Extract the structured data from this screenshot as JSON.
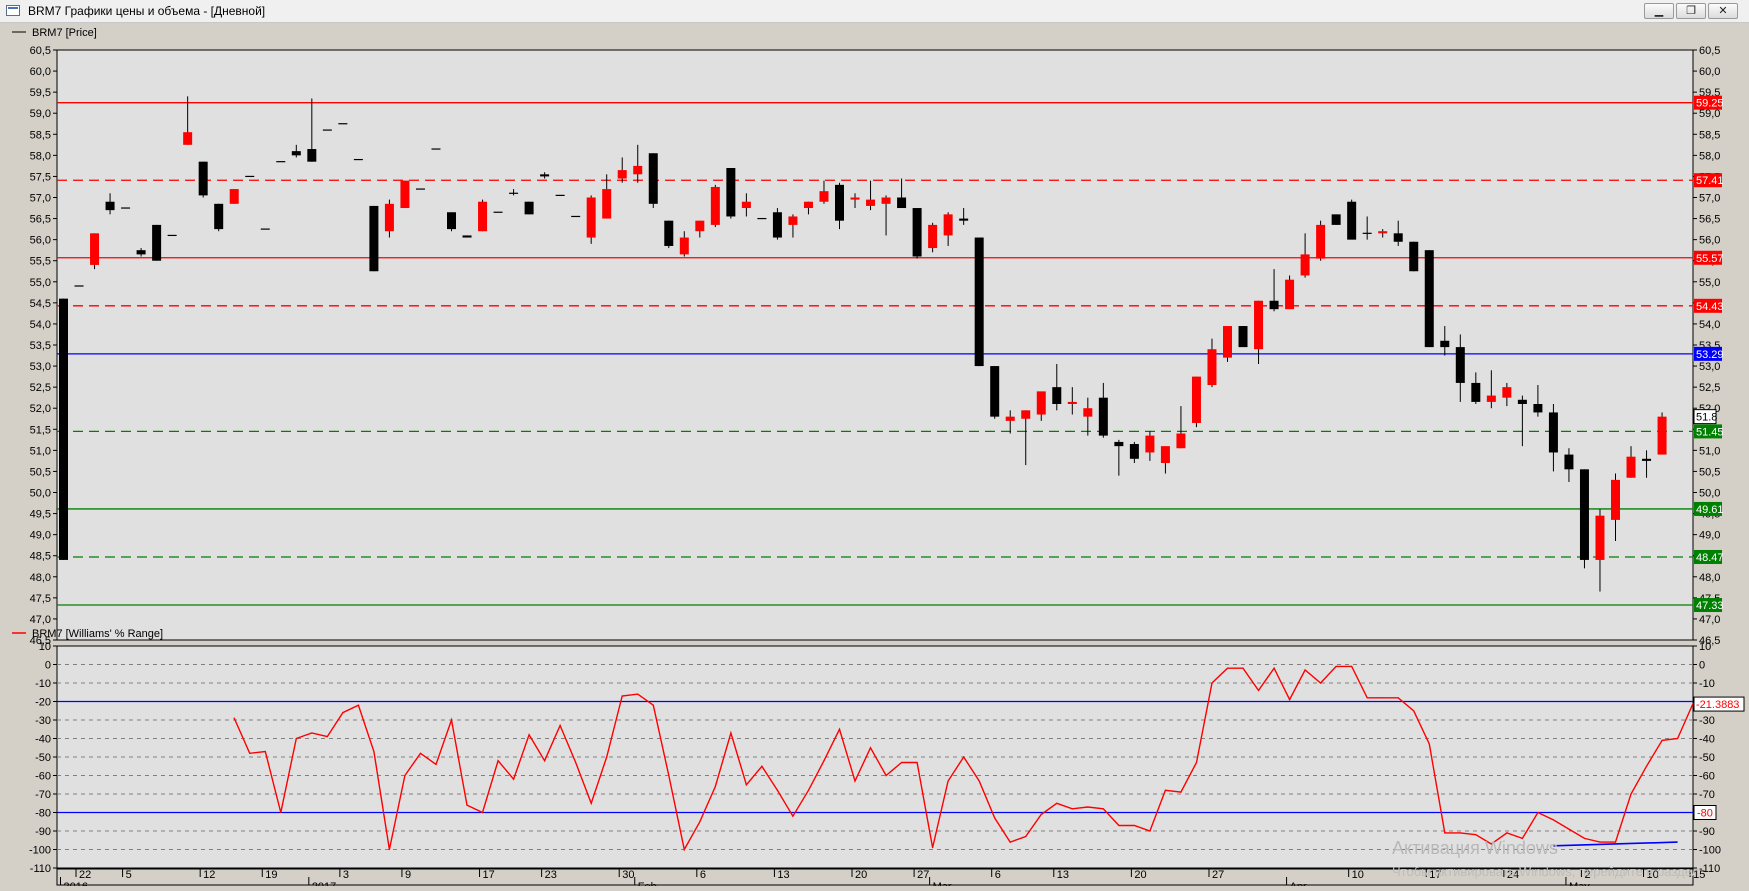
{
  "window": {
    "title": "BRM7 Графики цены и объема - [Дневной]",
    "buttons": {
      "minimize": "▁",
      "restore": "❐",
      "close": "✕"
    }
  },
  "colors": {
    "background": "#d4d0c8",
    "plot_bg": "#e0e0e0",
    "bull": "#ff0000",
    "bear": "#000000",
    "red_line": "#ff0000",
    "blue_line": "#0000ff",
    "green_line": "#008000"
  },
  "watermark": {
    "line1": "Активация Windows",
    "line2": "Чтобы активировать Windows, перейдите в раздел"
  },
  "chart_data": [
    {
      "type": "candlestick",
      "legend": "BRM7 [Price]",
      "ylim": [
        46.5,
        60.5
      ],
      "yticks": [
        46.5,
        47.0,
        47.5,
        48.0,
        48.5,
        49.0,
        49.5,
        50.0,
        50.5,
        51.0,
        51.5,
        52.0,
        52.5,
        53.0,
        53.5,
        54.0,
        54.5,
        55.0,
        55.5,
        56.0,
        56.5,
        57.0,
        57.5,
        58.0,
        58.5,
        59.0,
        59.5,
        60.0,
        60.5
      ],
      "grid": true,
      "candles": [
        [
          54.6,
          54.6,
          48.4,
          48.4
        ],
        [
          54.9,
          54.9,
          54.9,
          54.9
        ],
        [
          55.4,
          56.15,
          55.3,
          56.15
        ],
        [
          56.9,
          57.1,
          56.6,
          56.7
        ],
        [
          56.75,
          56.75,
          56.75,
          56.75
        ],
        [
          55.75,
          55.8,
          55.6,
          55.65
        ],
        [
          56.35,
          56.35,
          55.5,
          55.5
        ],
        [
          56.1,
          56.1,
          56.1,
          56.1
        ],
        [
          58.25,
          59.4,
          58.25,
          58.55
        ],
        [
          57.85,
          57.85,
          57.0,
          57.05
        ],
        [
          56.85,
          56.85,
          56.2,
          56.25
        ],
        [
          56.85,
          57.2,
          56.85,
          57.2
        ],
        [
          57.5,
          57.5,
          57.5,
          57.5
        ],
        [
          56.25,
          56.25,
          56.25,
          56.25
        ],
        [
          57.85,
          57.85,
          57.85,
          57.85
        ],
        [
          58.1,
          58.25,
          57.95,
          58.0
        ],
        [
          58.15,
          59.35,
          57.85,
          57.85
        ],
        [
          58.6,
          58.6,
          58.6,
          58.6
        ],
        [
          58.75,
          58.75,
          58.75,
          58.75
        ],
        [
          57.9,
          57.9,
          57.9,
          57.9
        ],
        [
          56.8,
          56.8,
          55.25,
          55.25
        ],
        [
          56.2,
          56.95,
          56.05,
          56.85
        ],
        [
          56.75,
          57.4,
          56.75,
          57.4
        ],
        [
          57.2,
          57.2,
          57.2,
          57.2
        ],
        [
          58.15,
          58.15,
          58.15,
          58.15
        ],
        [
          56.65,
          56.65,
          56.2,
          56.25
        ],
        [
          56.1,
          56.1,
          56.05,
          56.05
        ],
        [
          56.2,
          56.95,
          56.2,
          56.9
        ],
        [
          56.65,
          56.65,
          56.65,
          56.65
        ],
        [
          57.1,
          57.2,
          57.05,
          57.1
        ],
        [
          56.9,
          56.9,
          56.6,
          56.6
        ],
        [
          57.55,
          57.6,
          57.45,
          57.5
        ],
        [
          57.05,
          57.05,
          57.05,
          57.05
        ],
        [
          56.55,
          56.55,
          56.55,
          56.55
        ],
        [
          56.05,
          57.05,
          55.9,
          57.0
        ],
        [
          56.5,
          57.55,
          56.5,
          57.2
        ],
        [
          57.45,
          57.95,
          57.35,
          57.65
        ],
        [
          57.55,
          58.25,
          57.35,
          57.75
        ],
        [
          58.05,
          58.05,
          56.75,
          56.85
        ],
        [
          56.45,
          56.45,
          55.8,
          55.85
        ],
        [
          55.65,
          56.2,
          55.6,
          56.05
        ],
        [
          56.2,
          56.45,
          56.05,
          56.45
        ],
        [
          56.35,
          57.3,
          56.3,
          57.25
        ],
        [
          57.7,
          57.7,
          56.5,
          56.55
        ],
        [
          56.75,
          57.1,
          56.55,
          56.9
        ],
        [
          56.5,
          56.5,
          56.5,
          56.5
        ],
        [
          56.65,
          56.75,
          56.0,
          56.05
        ],
        [
          56.35,
          56.6,
          56.05,
          56.55
        ],
        [
          56.75,
          56.9,
          56.6,
          56.9
        ],
        [
          56.9,
          57.4,
          56.85,
          57.15
        ],
        [
          57.3,
          57.35,
          56.25,
          56.45
        ],
        [
          56.95,
          57.1,
          56.75,
          57.0
        ],
        [
          56.8,
          57.4,
          56.7,
          56.95
        ],
        [
          56.85,
          57.05,
          56.1,
          57.0
        ],
        [
          57.0,
          57.45,
          56.8,
          56.75
        ],
        [
          56.75,
          56.75,
          55.55,
          55.6
        ],
        [
          55.8,
          56.4,
          55.7,
          56.35
        ],
        [
          56.1,
          56.65,
          55.85,
          56.6
        ],
        [
          56.5,
          56.75,
          56.35,
          56.45
        ],
        [
          56.05,
          56.05,
          53.0,
          53.0
        ],
        [
          53.0,
          53.0,
          51.75,
          51.8
        ],
        [
          51.7,
          51.95,
          51.4,
          51.8
        ],
        [
          51.75,
          51.95,
          50.65,
          51.95
        ],
        [
          51.85,
          52.35,
          51.7,
          52.4
        ],
        [
          52.5,
          53.05,
          51.95,
          52.1
        ],
        [
          52.1,
          52.5,
          51.85,
          52.15
        ],
        [
          51.8,
          52.25,
          51.35,
          52.0
        ],
        [
          52.25,
          52.6,
          51.3,
          51.35
        ],
        [
          51.2,
          51.25,
          50.4,
          51.1
        ],
        [
          51.15,
          51.2,
          50.7,
          50.8
        ],
        [
          50.95,
          51.45,
          50.75,
          51.35
        ],
        [
          50.7,
          51.0,
          50.45,
          51.1
        ],
        [
          51.05,
          52.05,
          51.05,
          51.4
        ],
        [
          51.65,
          52.75,
          51.55,
          52.75
        ],
        [
          52.55,
          53.65,
          52.5,
          53.4
        ],
        [
          53.2,
          53.95,
          53.1,
          53.95
        ],
        [
          53.95,
          53.95,
          53.5,
          53.45
        ],
        [
          53.4,
          54.55,
          53.05,
          54.55
        ],
        [
          54.55,
          55.3,
          54.3,
          54.35
        ],
        [
          54.35,
          55.15,
          54.35,
          55.05
        ],
        [
          55.15,
          56.15,
          55.1,
          55.65
        ],
        [
          55.55,
          56.45,
          55.5,
          56.35
        ],
        [
          56.6,
          56.6,
          56.35,
          56.35
        ],
        [
          56.9,
          56.95,
          56.05,
          56.0
        ],
        [
          56.15,
          56.55,
          56.0,
          56.15
        ],
        [
          56.15,
          56.25,
          56.05,
          56.2
        ],
        [
          56.15,
          56.45,
          55.85,
          55.95
        ],
        [
          55.95,
          55.95,
          55.25,
          55.25
        ],
        [
          55.75,
          55.75,
          53.45,
          53.45
        ],
        [
          53.6,
          53.95,
          53.25,
          53.45
        ],
        [
          53.45,
          53.75,
          52.15,
          52.6
        ],
        [
          52.6,
          52.85,
          52.1,
          52.15
        ],
        [
          52.15,
          52.9,
          52.0,
          52.3
        ],
        [
          52.25,
          52.6,
          52.05,
          52.5
        ],
        [
          52.2,
          52.3,
          51.1,
          52.1
        ],
        [
          52.1,
          52.55,
          51.8,
          51.9
        ],
        [
          51.9,
          52.1,
          50.5,
          50.95
        ],
        [
          50.9,
          51.05,
          50.25,
          50.55
        ],
        [
          50.55,
          50.55,
          48.2,
          48.4
        ],
        [
          48.4,
          49.6,
          47.65,
          49.45
        ],
        [
          49.35,
          50.45,
          48.85,
          50.3
        ],
        [
          50.35,
          51.1,
          50.35,
          50.85
        ],
        [
          50.8,
          51.0,
          50.35,
          50.75
        ],
        [
          50.9,
          51.9,
          50.9,
          51.8
        ]
      ],
      "hlines": [
        {
          "value": 59.25,
          "color": "#ff0000",
          "style": "solid",
          "label": "59.25"
        },
        {
          "value": 57.41,
          "color": "#ff0000",
          "style": "dashed",
          "label": "57.41"
        },
        {
          "value": 55.57,
          "color": "#ff0000",
          "style": "solid",
          "label": "55.57"
        },
        {
          "value": 54.43,
          "color": "#ff0000",
          "style": "dashed",
          "label": "54.43"
        },
        {
          "value": 53.29,
          "color": "#0000ff",
          "style": "solid",
          "label": "53.29"
        },
        {
          "value": 51.45,
          "color": "#008000",
          "style": "dashed",
          "label": "51.45"
        },
        {
          "value": 49.61,
          "color": "#008000",
          "style": "solid",
          "label": "49.61"
        },
        {
          "value": 48.47,
          "color": "#008000",
          "style": "dashed",
          "label": "48.47"
        },
        {
          "value": 47.33,
          "color": "#008000",
          "style": "solid",
          "label": "47.33"
        }
      ],
      "last_value": {
        "value": 51.8,
        "label": "51.8"
      }
    },
    {
      "type": "line",
      "legend": "BRM7 [Williams' % Range]",
      "ylim": [
        -110,
        10
      ],
      "yticks": [
        10,
        0,
        -10,
        -20,
        -30,
        -40,
        -50,
        -60,
        -70,
        -80,
        -90,
        -100,
        -110
      ],
      "grid": true,
      "start_index": 11,
      "series": [
        {
          "color": "#ff0000",
          "values": [
            -29,
            -48,
            -47,
            -80,
            -40,
            -37,
            -39,
            -26,
            -22,
            -47,
            -100,
            -60,
            -48,
            -54,
            -30,
            -76,
            -80,
            -52,
            -62,
            -38,
            -52,
            -33,
            -53,
            -75,
            -50,
            -17,
            -16,
            -22,
            -60,
            -100,
            -85,
            -66,
            -37,
            -65,
            -55,
            -68,
            -82,
            -68,
            -52,
            -35,
            -63,
            -45,
            -60,
            -53,
            -53,
            -99,
            -63,
            -50,
            -63,
            -83,
            -96,
            -93,
            -81,
            -75,
            -78,
            -77,
            -78,
            -87,
            -87,
            -90,
            -68,
            -69,
            -53,
            -10,
            -2,
            -2,
            -14,
            -2,
            -19,
            -3,
            -10,
            -1,
            -1,
            -18,
            -18,
            -18,
            -25,
            -43,
            -91,
            -91,
            -92,
            -97,
            -91,
            -94,
            -80,
            -84,
            -89,
            -94,
            -96,
            -96,
            -70,
            -55,
            -41,
            -40,
            -21
          ]
        }
      ],
      "hlines": [
        {
          "value": -20,
          "color": "#0000ff",
          "style": "solid",
          "label": ""
        },
        {
          "value": -80,
          "color": "#0000ff",
          "style": "solid",
          "label": "-80"
        }
      ],
      "last_value": {
        "value": -21.3883,
        "label": "-21.3883"
      },
      "segment": {
        "color": "#0000ff",
        "points": [
          [
            96,
            -98
          ],
          [
            104,
            -96
          ]
        ]
      }
    }
  ],
  "xaxis": {
    "day_labels": [
      {
        "i": 1,
        "t": "22"
      },
      {
        "i": 4,
        "t": "5"
      },
      {
        "i": 9,
        "t": "12"
      },
      {
        "i": 13,
        "t": "19"
      },
      {
        "i": 18,
        "t": "3"
      },
      {
        "i": 22,
        "t": "9"
      },
      {
        "i": 27,
        "t": "17"
      },
      {
        "i": 31,
        "t": "23"
      },
      {
        "i": 36,
        "t": "30"
      },
      {
        "i": 41,
        "t": "6"
      },
      {
        "i": 46,
        "t": "13"
      },
      {
        "i": 51,
        "t": "20"
      },
      {
        "i": 55,
        "t": "27"
      },
      {
        "i": 60,
        "t": "6"
      },
      {
        "i": 64,
        "t": "13"
      },
      {
        "i": 69,
        "t": "20"
      },
      {
        "i": 74,
        "t": "27"
      },
      {
        "i": 83,
        "t": "10"
      },
      {
        "i": 88,
        "t": "17"
      },
      {
        "i": 93,
        "t": "24"
      },
      {
        "i": 98,
        "t": "2"
      },
      {
        "i": 102,
        "t": "10"
      },
      {
        "i": 105,
        "t": "15"
      }
    ],
    "period_labels": [
      {
        "i": 0,
        "t": "2016"
      },
      {
        "i": 16,
        "t": "2017"
      },
      {
        "i": 37,
        "t": "Feb"
      },
      {
        "i": 56,
        "t": "Mar"
      },
      {
        "i": 79,
        "t": "Apr"
      },
      {
        "i": 97,
        "t": "May"
      }
    ]
  }
}
